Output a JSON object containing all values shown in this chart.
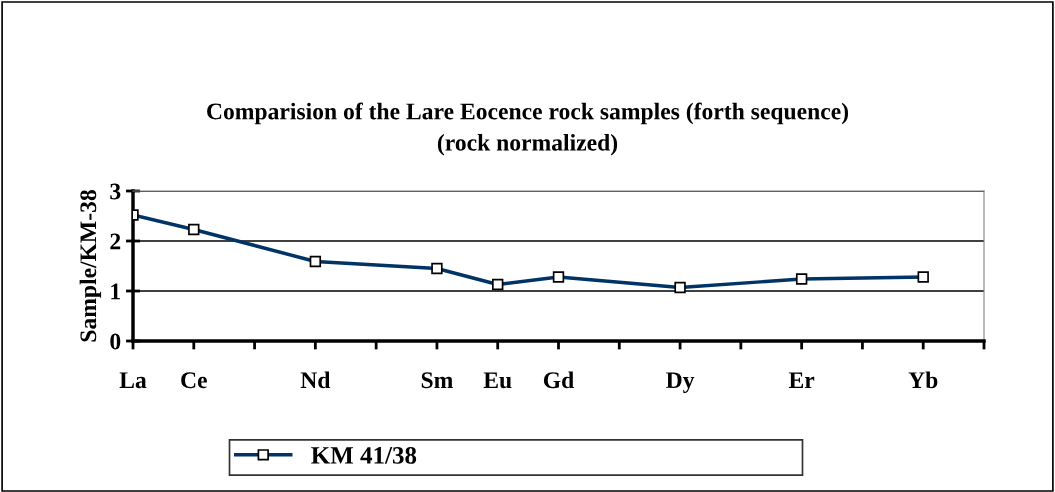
{
  "chart_data": {
    "type": "line",
    "title": "Comparision of the Lare Eocence rock samples (forth sequence)\n(rock normalized)",
    "ylabel": "Sample/KM-38",
    "categories": [
      "La",
      "Ce",
      null,
      "Nd",
      null,
      "Sm",
      "Eu",
      "Gd",
      null,
      "Dy",
      null,
      "Er",
      null,
      "Yb"
    ],
    "series": [
      {
        "name": "KM 41/38",
        "color": "#003366",
        "values": [
          2.52,
          2.23,
          null,
          1.59,
          null,
          1.45,
          1.13,
          1.28,
          null,
          1.07,
          null,
          1.24,
          null,
          1.28
        ]
      }
    ],
    "ylim": [
      0,
      3
    ],
    "yticks": [
      0,
      1,
      2,
      3
    ],
    "grid": "y",
    "legend": "bottom",
    "marker": "square",
    "line_style": "solid"
  }
}
